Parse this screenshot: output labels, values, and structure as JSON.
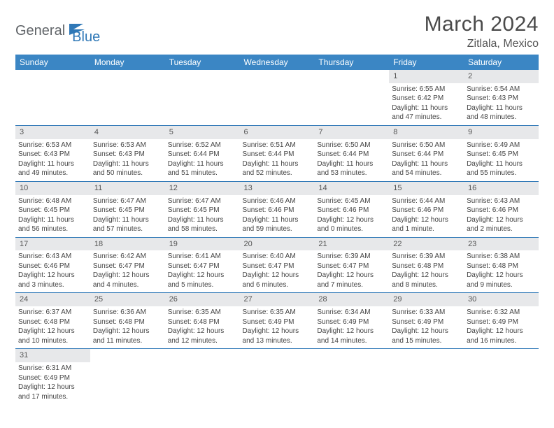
{
  "logo": {
    "text1": "General",
    "text2": "Blue"
  },
  "header": {
    "title": "March 2024",
    "location": "Zitlala, Mexico"
  },
  "colors": {
    "header_bg": "#3b86c4",
    "accent": "#2f78b7",
    "daynum_bg": "#e7e8ea"
  },
  "weekdays": [
    "Sunday",
    "Monday",
    "Tuesday",
    "Wednesday",
    "Thursday",
    "Friday",
    "Saturday"
  ],
  "weeks": [
    [
      null,
      null,
      null,
      null,
      null,
      {
        "n": "1",
        "sunrise": "Sunrise: 6:55 AM",
        "sunset": "Sunset: 6:42 PM",
        "day": "Daylight: 11 hours and 47 minutes."
      },
      {
        "n": "2",
        "sunrise": "Sunrise: 6:54 AM",
        "sunset": "Sunset: 6:43 PM",
        "day": "Daylight: 11 hours and 48 minutes."
      }
    ],
    [
      {
        "n": "3",
        "sunrise": "Sunrise: 6:53 AM",
        "sunset": "Sunset: 6:43 PM",
        "day": "Daylight: 11 hours and 49 minutes."
      },
      {
        "n": "4",
        "sunrise": "Sunrise: 6:53 AM",
        "sunset": "Sunset: 6:43 PM",
        "day": "Daylight: 11 hours and 50 minutes."
      },
      {
        "n": "5",
        "sunrise": "Sunrise: 6:52 AM",
        "sunset": "Sunset: 6:44 PM",
        "day": "Daylight: 11 hours and 51 minutes."
      },
      {
        "n": "6",
        "sunrise": "Sunrise: 6:51 AM",
        "sunset": "Sunset: 6:44 PM",
        "day": "Daylight: 11 hours and 52 minutes."
      },
      {
        "n": "7",
        "sunrise": "Sunrise: 6:50 AM",
        "sunset": "Sunset: 6:44 PM",
        "day": "Daylight: 11 hours and 53 minutes."
      },
      {
        "n": "8",
        "sunrise": "Sunrise: 6:50 AM",
        "sunset": "Sunset: 6:44 PM",
        "day": "Daylight: 11 hours and 54 minutes."
      },
      {
        "n": "9",
        "sunrise": "Sunrise: 6:49 AM",
        "sunset": "Sunset: 6:45 PM",
        "day": "Daylight: 11 hours and 55 minutes."
      }
    ],
    [
      {
        "n": "10",
        "sunrise": "Sunrise: 6:48 AM",
        "sunset": "Sunset: 6:45 PM",
        "day": "Daylight: 11 hours and 56 minutes."
      },
      {
        "n": "11",
        "sunrise": "Sunrise: 6:47 AM",
        "sunset": "Sunset: 6:45 PM",
        "day": "Daylight: 11 hours and 57 minutes."
      },
      {
        "n": "12",
        "sunrise": "Sunrise: 6:47 AM",
        "sunset": "Sunset: 6:45 PM",
        "day": "Daylight: 11 hours and 58 minutes."
      },
      {
        "n": "13",
        "sunrise": "Sunrise: 6:46 AM",
        "sunset": "Sunset: 6:46 PM",
        "day": "Daylight: 11 hours and 59 minutes."
      },
      {
        "n": "14",
        "sunrise": "Sunrise: 6:45 AM",
        "sunset": "Sunset: 6:46 PM",
        "day": "Daylight: 12 hours and 0 minutes."
      },
      {
        "n": "15",
        "sunrise": "Sunrise: 6:44 AM",
        "sunset": "Sunset: 6:46 PM",
        "day": "Daylight: 12 hours and 1 minute."
      },
      {
        "n": "16",
        "sunrise": "Sunrise: 6:43 AM",
        "sunset": "Sunset: 6:46 PM",
        "day": "Daylight: 12 hours and 2 minutes."
      }
    ],
    [
      {
        "n": "17",
        "sunrise": "Sunrise: 6:43 AM",
        "sunset": "Sunset: 6:46 PM",
        "day": "Daylight: 12 hours and 3 minutes."
      },
      {
        "n": "18",
        "sunrise": "Sunrise: 6:42 AM",
        "sunset": "Sunset: 6:47 PM",
        "day": "Daylight: 12 hours and 4 minutes."
      },
      {
        "n": "19",
        "sunrise": "Sunrise: 6:41 AM",
        "sunset": "Sunset: 6:47 PM",
        "day": "Daylight: 12 hours and 5 minutes."
      },
      {
        "n": "20",
        "sunrise": "Sunrise: 6:40 AM",
        "sunset": "Sunset: 6:47 PM",
        "day": "Daylight: 12 hours and 6 minutes."
      },
      {
        "n": "21",
        "sunrise": "Sunrise: 6:39 AM",
        "sunset": "Sunset: 6:47 PM",
        "day": "Daylight: 12 hours and 7 minutes."
      },
      {
        "n": "22",
        "sunrise": "Sunrise: 6:39 AM",
        "sunset": "Sunset: 6:48 PM",
        "day": "Daylight: 12 hours and 8 minutes."
      },
      {
        "n": "23",
        "sunrise": "Sunrise: 6:38 AM",
        "sunset": "Sunset: 6:48 PM",
        "day": "Daylight: 12 hours and 9 minutes."
      }
    ],
    [
      {
        "n": "24",
        "sunrise": "Sunrise: 6:37 AM",
        "sunset": "Sunset: 6:48 PM",
        "day": "Daylight: 12 hours and 10 minutes."
      },
      {
        "n": "25",
        "sunrise": "Sunrise: 6:36 AM",
        "sunset": "Sunset: 6:48 PM",
        "day": "Daylight: 12 hours and 11 minutes."
      },
      {
        "n": "26",
        "sunrise": "Sunrise: 6:35 AM",
        "sunset": "Sunset: 6:48 PM",
        "day": "Daylight: 12 hours and 12 minutes."
      },
      {
        "n": "27",
        "sunrise": "Sunrise: 6:35 AM",
        "sunset": "Sunset: 6:49 PM",
        "day": "Daylight: 12 hours and 13 minutes."
      },
      {
        "n": "28",
        "sunrise": "Sunrise: 6:34 AM",
        "sunset": "Sunset: 6:49 PM",
        "day": "Daylight: 12 hours and 14 minutes."
      },
      {
        "n": "29",
        "sunrise": "Sunrise: 6:33 AM",
        "sunset": "Sunset: 6:49 PM",
        "day": "Daylight: 12 hours and 15 minutes."
      },
      {
        "n": "30",
        "sunrise": "Sunrise: 6:32 AM",
        "sunset": "Sunset: 6:49 PM",
        "day": "Daylight: 12 hours and 16 minutes."
      }
    ],
    [
      {
        "n": "31",
        "sunrise": "Sunrise: 6:31 AM",
        "sunset": "Sunset: 6:49 PM",
        "day": "Daylight: 12 hours and 17 minutes."
      },
      null,
      null,
      null,
      null,
      null,
      null
    ]
  ]
}
